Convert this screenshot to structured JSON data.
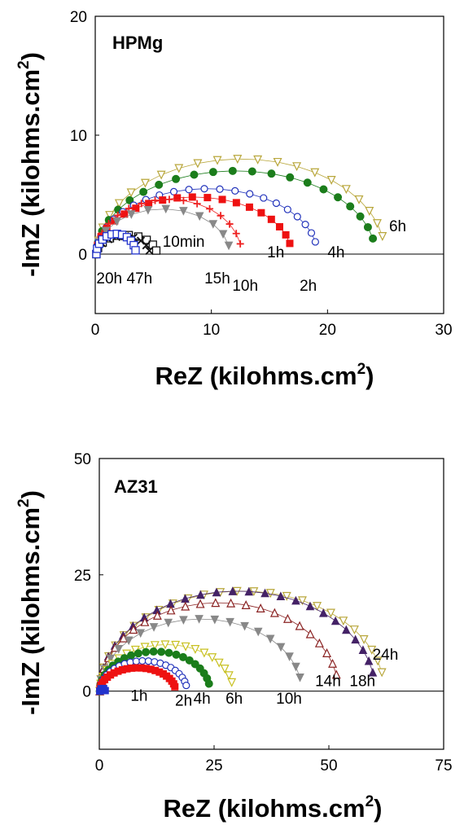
{
  "chart_data": [
    {
      "type": "scatter",
      "title": "HPMg",
      "xlabel": "ReZ (kilohms.cm",
      "xlabel_sup": "2",
      "xlabel_close": ")",
      "ylabel": "-ImZ (kilohms.cm",
      "ylabel_sup": "2",
      "ylabel_close": ")",
      "xlim": [
        0,
        30
      ],
      "ylim": [
        -5,
        20
      ],
      "xticks": [
        "0",
        "10",
        "20",
        "30"
      ],
      "xtick_values": [
        0,
        10,
        20,
        30
      ],
      "yticks": [
        "0",
        "10",
        "20"
      ],
      "ytick_values": [
        0,
        10,
        20
      ],
      "series": [
        {
          "label": "6h",
          "marker": "tri-down-open",
          "color": "#b8a63a",
          "diameter": 24.8,
          "height": 8.0,
          "start": 0.15,
          "npts": 22
        },
        {
          "label": "4h",
          "marker": "circle-filled",
          "color": "#1b7d1b",
          "diameter": 24.0,
          "height": 7.0,
          "start": 0.12,
          "npts": 22
        },
        {
          "label": "2h",
          "marker": "circle-open",
          "color": "#2233bb",
          "diameter": 19.0,
          "height": 5.5,
          "start": 0.12,
          "npts": 22
        },
        {
          "label": "1h",
          "marker": "square-filled",
          "color": "#ee1111",
          "diameter": 16.8,
          "height": 4.8,
          "start": 0.1,
          "npts": 20
        },
        {
          "label": "10h",
          "marker": "plus",
          "color": "#ee2222",
          "diameter": 12.5,
          "height": 4.6,
          "start": 0.1,
          "npts": 16
        },
        {
          "label": "15h",
          "marker": "tri-down-filled",
          "color": "#888888",
          "diameter": 11.5,
          "height": 3.8,
          "start": 0.1,
          "npts": 12
        },
        {
          "label": "10min",
          "marker": "square-open",
          "color": "#111111",
          "diameter": 5.2,
          "height": 1.6,
          "start": 0.1,
          "npts": 10
        },
        {
          "label": "47h",
          "marker": "x",
          "color": "#111111",
          "diameter": 4.6,
          "height": 1.5,
          "start": 0.1,
          "npts": 10
        },
        {
          "label": "20h",
          "marker": "square-open",
          "color": "#2233cc",
          "diameter": 3.4,
          "height": 1.7,
          "start": 0.1,
          "npts": 12
        }
      ],
      "labels": [
        {
          "text": "6h",
          "x": 25.3,
          "y": 2.4
        },
        {
          "text": "4h",
          "x": 20.0,
          "y": 0.2
        },
        {
          "text": "2h",
          "x": 17.6,
          "y": -2.6
        },
        {
          "text": "1h",
          "x": 14.8,
          "y": 0.2
        },
        {
          "text": "10h",
          "x": 11.8,
          "y": -2.6
        },
        {
          "text": "15h",
          "x": 9.4,
          "y": -2.0
        },
        {
          "text": "10min",
          "x": 5.8,
          "y": 1.1
        },
        {
          "text": "47h",
          "x": 2.7,
          "y": -2.0
        },
        {
          "text": "20h",
          "x": 0.1,
          "y": -2.0
        }
      ]
    },
    {
      "type": "scatter",
      "title": "AZ31",
      "xlabel": "ReZ (kilohms.cm",
      "xlabel_sup": "2",
      "xlabel_close": ")",
      "ylabel": "-ImZ (kilohms.cm",
      "ylabel_sup": "2",
      "ylabel_close": ")",
      "xlim": [
        0,
        75
      ],
      "ylim": [
        -12.5,
        50
      ],
      "xticks": [
        "0",
        "25",
        "50",
        "75"
      ],
      "xtick_values": [
        0,
        25,
        50,
        75
      ],
      "yticks": [
        "0",
        "25",
        "50"
      ],
      "ytick_values": [
        0,
        25,
        50
      ],
      "series": [
        {
          "label": "24h",
          "marker": "tri-down-open",
          "color": "#b8a63a",
          "diameter": 62.0,
          "height": 21.5,
          "start": 0.1,
          "npts": 26
        },
        {
          "label": "18h",
          "marker": "tri-up-filled",
          "color": "#442266",
          "diameter": 60.0,
          "height": 21.5,
          "start": 0.1,
          "npts": 26
        },
        {
          "label": "14h",
          "marker": "tri-up-open",
          "color": "#8a2222",
          "diameter": 52.0,
          "height": 19.0,
          "start": 0.1,
          "npts": 24
        },
        {
          "label": "10h",
          "marker": "tri-down-filled",
          "color": "#888888",
          "diameter": 44.0,
          "height": 15.5,
          "start": 0.1,
          "npts": 20
        },
        {
          "label": "6h",
          "marker": "tri-down-open",
          "color": "#c8c020",
          "diameter": 29.0,
          "height": 10.0,
          "start": 0.1,
          "npts": 20
        },
        {
          "label": "4h",
          "marker": "circle-filled",
          "color": "#1b7d1b",
          "diameter": 24.0,
          "height": 8.5,
          "start": 0.1,
          "npts": 22
        },
        {
          "label": "2h",
          "marker": "circle-open",
          "color": "#2233bb",
          "diameter": 19.0,
          "height": 6.5,
          "start": 0.1,
          "npts": 22
        },
        {
          "label": "1h",
          "marker": "square-filled",
          "color": "#ee1111",
          "diameter": 16.5,
          "height": 5.0,
          "start": 0.1,
          "npts": 24
        },
        {
          "label": "",
          "marker": "square-filled",
          "color": "#2233cc",
          "diameter": 1.2,
          "height": 0.6,
          "start": 0.1,
          "npts": 4
        }
      ],
      "labels": [
        {
          "text": "24h",
          "x": 59.5,
          "y": 8.0
        },
        {
          "text": "18h",
          "x": 54.5,
          "y": 2.3
        },
        {
          "text": "14h",
          "x": 47.0,
          "y": 2.3
        },
        {
          "text": "10h",
          "x": 38.5,
          "y": -1.5
        },
        {
          "text": "6h",
          "x": 27.5,
          "y": -1.5
        },
        {
          "text": "4h",
          "x": 20.5,
          "y": -1.5
        },
        {
          "text": "2h",
          "x": 16.5,
          "y": -1.9
        },
        {
          "text": "1h",
          "x": 6.8,
          "y": -0.9
        }
      ]
    }
  ]
}
